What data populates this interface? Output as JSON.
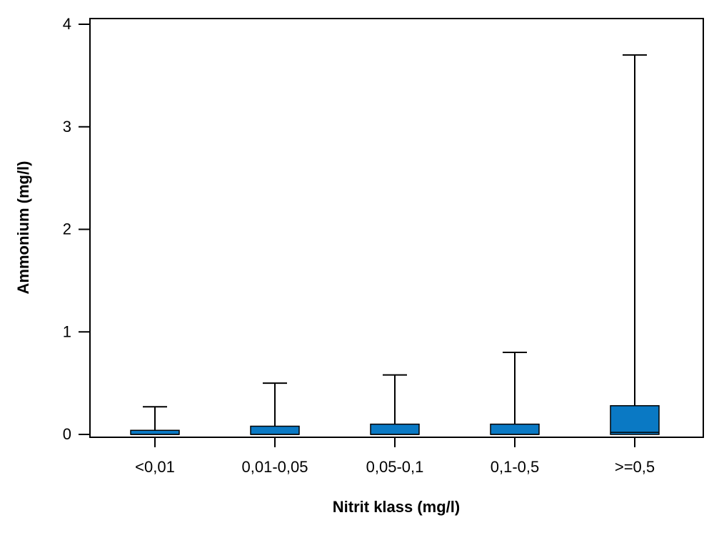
{
  "chart_data": {
    "type": "box",
    "xlabel": "Nitrit klass (mg/l)",
    "ylabel": "Ammonium (mg/l)",
    "ylim": [
      0,
      4
    ],
    "yticks": [
      0,
      1,
      2,
      3,
      4
    ],
    "categories": [
      "<0,01",
      "0,01-0,05",
      "0,05-0,1",
      "0,1-0,5",
      ">=0,5"
    ],
    "boxes": [
      {
        "min": 0,
        "q1": 0.0,
        "median": 0.0,
        "q3": 0.04,
        "max": 0.27
      },
      {
        "min": 0,
        "q1": 0.0,
        "median": 0.0,
        "q3": 0.08,
        "max": 0.5
      },
      {
        "min": 0,
        "q1": 0.0,
        "median": 0.0,
        "q3": 0.1,
        "max": 0.58
      },
      {
        "min": 0,
        "q1": 0.0,
        "median": 0.0,
        "q3": 0.1,
        "max": 0.8
      },
      {
        "min": 0,
        "q1": 0.0,
        "median": 0.02,
        "q3": 0.28,
        "max": 3.7
      }
    ],
    "box_color": "#0a79c4",
    "grid": false,
    "legend": "none"
  }
}
